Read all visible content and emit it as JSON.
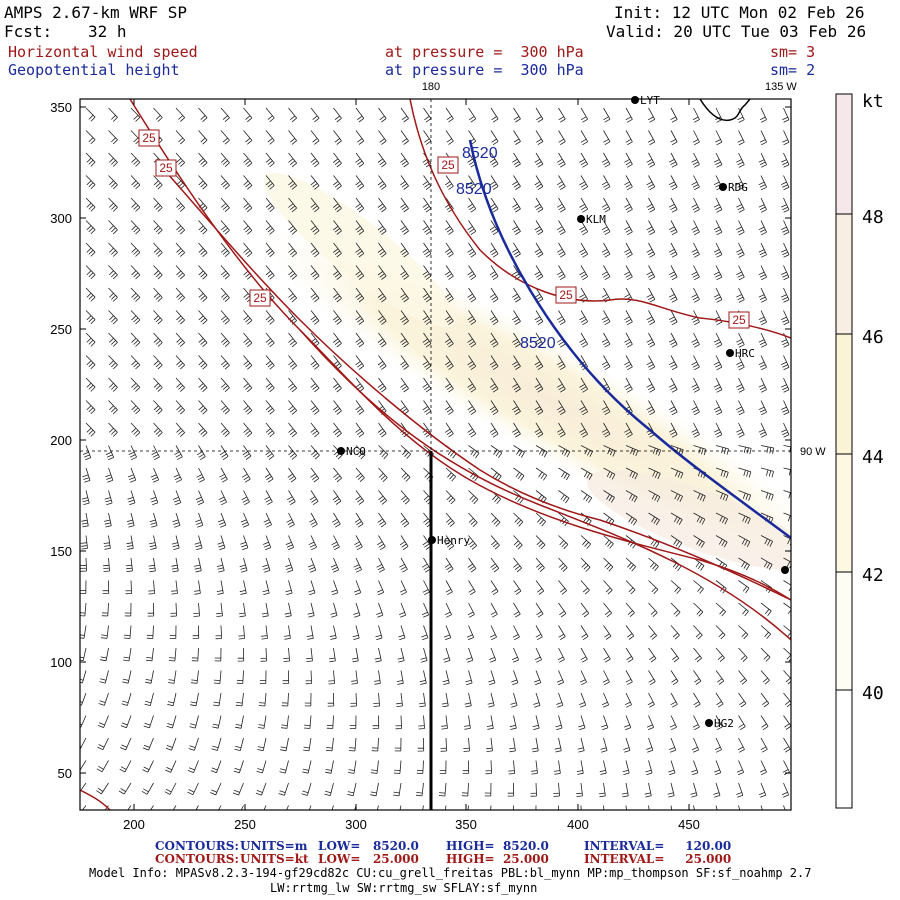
{
  "header": {
    "model": "AMPS 2.67-km WRF SP",
    "forecast_label": "Fcst:",
    "forecast_hours": "32 h",
    "init": "Init: 12 UTC Mon 02 Feb 26",
    "valid": "Valid: 20 UTC Tue 03 Feb 26",
    "field1": "Horizontal wind speed",
    "field2": "Geopotential height",
    "level1": "at pressure =  300 hPa",
    "level2": "at pressure =  300 hPa",
    "sm1": "sm= 3",
    "sm2": "sm= 2"
  },
  "map": {
    "lon_top_label": "180",
    "lon_topright_label": "135 W",
    "lon_right_label": "90 W",
    "x_ticks": [
      "200",
      "250",
      "300",
      "350",
      "400",
      "450"
    ],
    "y_ticks": [
      "350",
      "300",
      "250",
      "200",
      "150",
      "100",
      "50"
    ],
    "stations": [
      {
        "name": "LYT",
        "x": 635,
        "y": 100
      },
      {
        "name": "RDG",
        "x": 723,
        "y": 187
      },
      {
        "name": "KLM",
        "x": 581,
        "y": 219
      },
      {
        "name": "HRC",
        "x": 730,
        "y": 353
      },
      {
        "name": "NCO",
        "x": 341,
        "y": 451
      },
      {
        "name": "Henry",
        "x": 432,
        "y": 540
      },
      {
        "name": "",
        "x": 785,
        "y": 570
      },
      {
        "name": "HG2",
        "x": 709,
        "y": 723
      }
    ],
    "speed_contour_labels": [
      "25",
      "25",
      "25",
      "25",
      "25",
      "25"
    ],
    "height_contour_labels": [
      "8520",
      "8520",
      "8520"
    ],
    "colors": {
      "speed_contour": "#a01818",
      "height_contour": "#1a2a9c",
      "shade_low": "#fdfbe6",
      "shade_mid": "#faf3cf",
      "shade_high": "#f6e6e6"
    }
  },
  "colorbar": {
    "unit": "kt",
    "labels": [
      "48",
      "46",
      "44",
      "42",
      "40"
    ],
    "colors": [
      "#f6e8ea",
      "#f8eee4",
      "#fbf3d6",
      "#fdf8e2",
      "#fefdf3"
    ]
  },
  "footer": {
    "c1_head": "CONTOURS:",
    "c1_units": "UNITS=m",
    "c1_low": "LOW=   8520.0",
    "c1_high": "HIGH=  8520.0",
    "c1_interval": "INTERVAL=     120.00",
    "c2_head": "CONTOURS:",
    "c2_units": "UNITS=kt",
    "c2_low": "LOW=   25.000",
    "c2_high": "HIGH=  25.000",
    "c2_interval": "INTERVAL=     25.000",
    "model_info": "Model Info: MPASv8.2.3-194-gf29cd82c CU:cu_grell_freitas PBL:bl_mynn MP:mp_thompson SF:sf_noahmp 2.7",
    "model_info2": "LW:rrtmg_lw SW:rrtmg_sw SFLAY:sf_mynn"
  }
}
